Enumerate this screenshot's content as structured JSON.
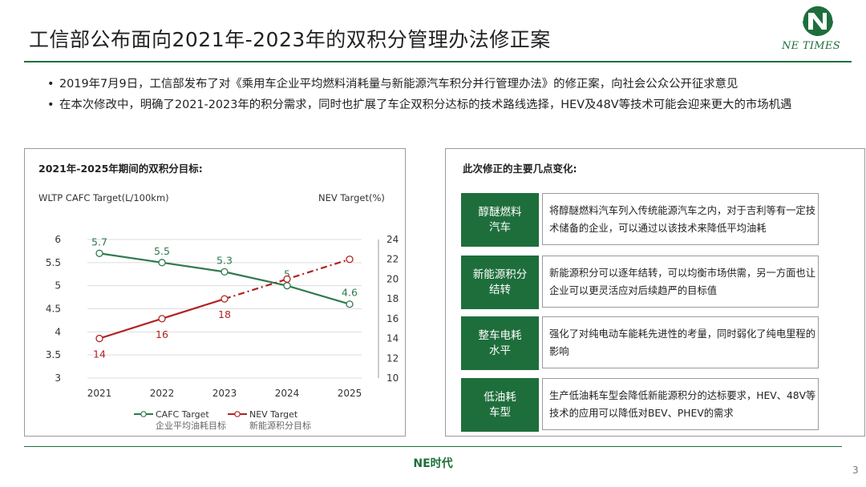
{
  "slide": {
    "title": "工信部公布面向2021年-2023年的双积分管理办法修正案",
    "bullets": [
      "2019年7月9日，工信部发布了对《乘用车企业平均燃料消耗量与新能源汽车积分并行管理办法》的修正案，向社会公众公开征求意见",
      "在本次修改中，明确了2021-2023年的积分需求，同时也扩展了车企双积分达标的技术路线选择，HEV及48V等技术可能会迎来更大的市场机遇"
    ],
    "bullet_symbol": "•"
  },
  "logo": {
    "text": "NE TIMES",
    "color": "#1e6e3c"
  },
  "left_panel": {
    "heading": "2021年-2025年期间的双积分目标:",
    "left_axis_title": "WLTP CAFC Target(L/100km)",
    "right_axis_title": "NEV Target(%)"
  },
  "chart_data": {
    "type": "line",
    "title": "2021年-2025年期间的双积分目标:",
    "x": [
      "2021",
      "2022",
      "2023",
      "2024",
      "2025"
    ],
    "y_left_label": "WLTP CAFC Target(L/100km)",
    "y_right_label": "NEV Target(%)",
    "y_left_lim": [
      3,
      6
    ],
    "y_left_ticks": [
      "3",
      "3.5",
      "4",
      "4.5",
      "5",
      "5.5",
      "6"
    ],
    "y_right_lim": [
      10,
      24
    ],
    "y_right_ticks": [
      "10",
      "12",
      "14",
      "16",
      "18",
      "20",
      "22",
      "24"
    ],
    "grid": "horizontal",
    "legend_position": "bottom",
    "series": [
      {
        "name": "CAFC Target",
        "sub_name": "企业平均油耗目标",
        "axis": "left",
        "color": "#2f7a4d",
        "values": [
          5.7,
          5.5,
          5.3,
          5.0,
          4.6
        ],
        "labels": [
          "5.7",
          "5.5",
          "5.3",
          "5",
          "4.6"
        ]
      },
      {
        "name": "NEV Target",
        "sub_name": "新能源积分目标",
        "axis": "right",
        "color": "#b22222",
        "values": [
          14,
          16,
          18,
          20,
          22
        ],
        "labels": [
          "14",
          "16",
          "18",
          "",
          ""
        ],
        "dashed_from_index": 2
      }
    ]
  },
  "right_panel": {
    "heading": "此次修正的主要几点变化:",
    "changes": [
      {
        "tag": "醇醚燃料\n汽车",
        "desc": "将醇醚燃料汽车列入传统能源汽车之内，对于吉利等有一定技术储备的企业，可以通过以该技术来降低平均油耗"
      },
      {
        "tag": "新能源积分\n结转",
        "desc": "新能源积分可以逐年结转，可以均衡市场供需，另一方面也让企业可以更灵活应对后续趋严的目标值"
      },
      {
        "tag": "整车电耗\n水平",
        "desc": "强化了对纯电动车能耗先进性的考量，同时弱化了纯电里程的影响"
      },
      {
        "tag": "低油耗\n车型",
        "desc": "生产低油耗车型会降低新能源积分的达标要求，HEV、48V等技术的应用可以降低对BEV、PHEV的需求"
      }
    ]
  },
  "footer": {
    "brand": "NE时代",
    "page": "3"
  }
}
